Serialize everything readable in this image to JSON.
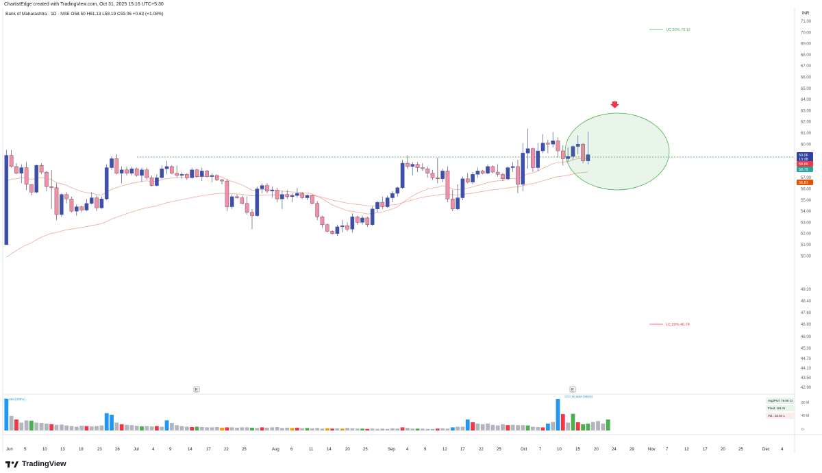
{
  "header": {
    "created": "ChartistEdge created with TradingView.com, Oct 31, 2025 15:16 UTC+5:30"
  },
  "symbol": {
    "name": "Bank of Maharashtra · 1D · NSE",
    "ohlc": "O58.50 H61.13 L58.19 C59.06 +0.63 (+1.08%)"
  },
  "footer": {
    "brand": "TradingView"
  },
  "colors": {
    "up": "#3f4fa8",
    "down": "#ef8faa",
    "ema": "#f2a59a",
    "circle": "#4caf50",
    "arrow": "#f23645",
    "dotted": "#4caf50",
    "vol_blue": "#2196f3",
    "vol_red": "#f23645",
    "vol_green": "#4caf50",
    "vol_gray": "#b2b5be",
    "vol_orange": "#ff9800"
  },
  "chart_data": {
    "type": "candlestick",
    "currency": "INR",
    "y_ticks": [
      "71.00",
      "70.00",
      "69.00",
      "68.00",
      "67.00",
      "66.00",
      "65.00",
      "64.00",
      "63.00",
      "62.00",
      "61.00",
      "60.00",
      "59.00",
      "58.00",
      "57.00",
      "56.00",
      "55.00",
      "54.00",
      "53.00",
      "52.00",
      "51.00",
      "50.00",
      "49.20",
      "48.40",
      "47.60",
      "46.80",
      "46.00",
      "45.30",
      "44.70",
      "44.10",
      "43.50",
      "42.90"
    ],
    "ylim": [
      42.9,
      71.0
    ],
    "price_tags": [
      {
        "label": "59.06",
        "sub": "13:38",
        "value": 59.06,
        "color": "#2e3fa0"
      },
      {
        "label": "58.89",
        "value": 58.89,
        "color": "#f23645"
      },
      {
        "label": "58.78",
        "value": 58.78,
        "color": "#26a69a"
      },
      {
        "label": "56.81",
        "value": 56.81,
        "color": "#e65100"
      }
    ],
    "upper_circuit": {
      "label": "UC  20%  70.12",
      "value": 70.12
    },
    "lower_circuit": {
      "label": "LC  20%  46.74",
      "value": 46.74
    },
    "resistance_level": 58.85,
    "x_labels": [
      "Jun",
      "5",
      "10",
      "13",
      "18",
      "23",
      "26",
      "Jul",
      "4",
      "9",
      "14",
      "17",
      "22",
      "25",
      "Aug",
      "6",
      "11",
      "14",
      "20",
      "25",
      "Sep",
      "4",
      "9",
      "12",
      "17",
      "22",
      "25",
      "Oct",
      "7",
      "10",
      "15",
      "20",
      "24",
      "29",
      "Nov",
      "7",
      "12",
      "17",
      "20",
      "25",
      "Dec",
      "4"
    ],
    "events": [
      {
        "label": "E",
        "index": 14
      },
      {
        "label": "E",
        "index": 101
      }
    ],
    "volume_labels": {
      "left": "95.43M (485%)",
      "spike": "VOY 95.66M (488%)",
      "right": [
        "Avg/Prvl: 76.66 Cr",
        "Float: 161 M",
        "Vol.: 32.64 L"
      ],
      "ticks": [
        "80 M",
        "40 M",
        "0"
      ]
    },
    "candles": [
      [
        51.0,
        59.5,
        51.0,
        59.0
      ],
      [
        59.0,
        59.5,
        57.9,
        58.0
      ],
      [
        58.0,
        58.3,
        57.3,
        57.4
      ],
      [
        57.4,
        58.2,
        56.5,
        57.9
      ],
      [
        57.9,
        58.4,
        55.9,
        56.4
      ],
      [
        56.4,
        56.4,
        55.4,
        55.7
      ],
      [
        55.7,
        58.2,
        55.6,
        58.1
      ],
      [
        58.1,
        58.3,
        57.3,
        57.5
      ],
      [
        57.5,
        57.6,
        55.8,
        56.2
      ],
      [
        56.2,
        57.7,
        54.2,
        56.1
      ],
      [
        56.1,
        56.5,
        53.2,
        53.7
      ],
      [
        53.7,
        55.6,
        53.5,
        55.5
      ],
      [
        55.5,
        55.7,
        54.7,
        55.1
      ],
      [
        55.1,
        55.3,
        53.9,
        54.0
      ],
      [
        54.0,
        54.6,
        53.6,
        54.4
      ],
      [
        54.4,
        54.5,
        53.9,
        54.1
      ],
      [
        54.1,
        55.1,
        54.0,
        54.7
      ],
      [
        54.7,
        55.7,
        54.6,
        55.2
      ],
      [
        55.2,
        55.4,
        54.0,
        54.3
      ],
      [
        54.3,
        55.3,
        54.2,
        55.1
      ],
      [
        55.1,
        58.2,
        55.0,
        57.9
      ],
      [
        57.9,
        58.9,
        57.7,
        58.7
      ],
      [
        58.7,
        59.1,
        57.3,
        57.4
      ],
      [
        57.4,
        58.0,
        56.5,
        57.7
      ],
      [
        57.7,
        58.0,
        57.2,
        57.4
      ],
      [
        57.4,
        58.0,
        57.2,
        57.8
      ],
      [
        57.8,
        57.9,
        57.1,
        57.2
      ],
      [
        57.2,
        57.9,
        56.6,
        57.7
      ],
      [
        57.7,
        57.9,
        56.8,
        57.0
      ],
      [
        57.0,
        57.2,
        56.2,
        56.3
      ],
      [
        56.3,
        57.3,
        56.2,
        57.0
      ],
      [
        57.0,
        58.1,
        56.9,
        57.8
      ],
      [
        57.8,
        58.5,
        57.3,
        58.0
      ],
      [
        58.0,
        58.1,
        57.3,
        57.4
      ],
      [
        57.4,
        58.1,
        57.0,
        57.2
      ],
      [
        57.2,
        57.5,
        56.9,
        57.3
      ],
      [
        57.3,
        57.4,
        56.8,
        57.0
      ],
      [
        57.0,
        57.9,
        56.9,
        57.7
      ],
      [
        57.7,
        57.8,
        57.0,
        57.1
      ],
      [
        57.1,
        57.9,
        56.7,
        57.6
      ],
      [
        57.6,
        57.7,
        57.0,
        57.1
      ],
      [
        57.1,
        57.4,
        56.6,
        57.2
      ],
      [
        57.2,
        57.3,
        56.7,
        56.8
      ],
      [
        56.8,
        56.9,
        56.4,
        56.7
      ],
      [
        56.7,
        56.9,
        54.0,
        54.4
      ],
      [
        54.4,
        55.5,
        54.2,
        55.3
      ],
      [
        55.3,
        55.5,
        55.1,
        55.2
      ],
      [
        55.2,
        55.4,
        54.6,
        54.7
      ],
      [
        54.7,
        55.3,
        53.7,
        53.9
      ],
      [
        53.9,
        54.2,
        52.4,
        53.6
      ],
      [
        53.6,
        56.2,
        53.5,
        56.0
      ],
      [
        56.0,
        56.5,
        55.6,
        56.3
      ],
      [
        56.3,
        56.5,
        55.6,
        55.8
      ],
      [
        55.8,
        56.2,
        55.2,
        55.9
      ],
      [
        55.9,
        56.1,
        54.8,
        55.1
      ],
      [
        55.1,
        55.8,
        54.2,
        55.5
      ],
      [
        55.5,
        55.9,
        55.1,
        55.3
      ],
      [
        55.3,
        55.6,
        54.8,
        55.4
      ],
      [
        55.4,
        56.1,
        55.2,
        55.6
      ],
      [
        55.6,
        55.7,
        55.1,
        55.2
      ],
      [
        55.2,
        55.5,
        55.0,
        55.4
      ],
      [
        55.4,
        55.5,
        54.6,
        54.7
      ],
      [
        54.7,
        54.9,
        53.2,
        53.5
      ],
      [
        53.5,
        53.6,
        52.5,
        52.8
      ],
      [
        52.8,
        52.9,
        52.1,
        52.2
      ],
      [
        52.2,
        52.3,
        51.9,
        52.0
      ],
      [
        52.0,
        52.8,
        51.8,
        52.6
      ],
      [
        52.6,
        53.2,
        52.1,
        52.7
      ],
      [
        52.7,
        53.0,
        52.2,
        52.4
      ],
      [
        52.4,
        53.8,
        52.1,
        53.5
      ],
      [
        53.5,
        53.6,
        52.8,
        53.0
      ],
      [
        53.0,
        53.6,
        52.8,
        53.4
      ],
      [
        53.4,
        53.5,
        52.6,
        52.8
      ],
      [
        52.8,
        54.4,
        52.7,
        54.2
      ],
      [
        54.2,
        54.9,
        53.9,
        54.8
      ],
      [
        54.8,
        55.3,
        54.2,
        54.4
      ],
      [
        54.4,
        55.4,
        54.3,
        55.2
      ],
      [
        55.2,
        55.8,
        54.8,
        55.6
      ],
      [
        55.6,
        56.2,
        55.3,
        56.1
      ],
      [
        56.1,
        58.6,
        56.0,
        58.3
      ],
      [
        58.3,
        59.0,
        57.8,
        58.0
      ],
      [
        58.0,
        58.4,
        57.2,
        58.2
      ],
      [
        58.2,
        58.4,
        57.5,
        57.9
      ],
      [
        57.9,
        58.3,
        57.6,
        57.8
      ],
      [
        57.8,
        58.0,
        57.0,
        57.4
      ],
      [
        57.4,
        57.7,
        56.8,
        57.0
      ],
      [
        57.0,
        58.8,
        56.5,
        56.9
      ],
      [
        56.9,
        57.8,
        56.6,
        57.6
      ],
      [
        57.6,
        58.0,
        54.8,
        55.1
      ],
      [
        55.1,
        55.9,
        54.0,
        54.2
      ],
      [
        54.2,
        56.4,
        54.1,
        55.2
      ],
      [
        55.2,
        57.1,
        55.0,
        56.9
      ],
      [
        56.9,
        57.4,
        56.5,
        56.6
      ],
      [
        56.6,
        57.5,
        56.4,
        57.3
      ],
      [
        57.3,
        57.9,
        57.0,
        57.6
      ],
      [
        57.6,
        57.7,
        57.3,
        57.4
      ],
      [
        57.4,
        58.2,
        57.3,
        58.0
      ],
      [
        58.0,
        58.1,
        57.4,
        57.5
      ],
      [
        57.5,
        58.2,
        57.1,
        57.3
      ],
      [
        57.3,
        57.4,
        56.7,
        56.9
      ],
      [
        56.9,
        58.0,
        56.8,
        57.9
      ],
      [
        57.9,
        58.4,
        57.5,
        58.0
      ],
      [
        58.0,
        58.6,
        55.6,
        56.4
      ],
      [
        56.4,
        60.1,
        55.8,
        59.2
      ],
      [
        59.2,
        61.4,
        57.8,
        59.6
      ],
      [
        59.6,
        59.7,
        57.5,
        57.9
      ],
      [
        57.9,
        60.1,
        57.6,
        59.4
      ],
      [
        59.4,
        60.9,
        59.2,
        60.1
      ],
      [
        60.1,
        60.4,
        59.2,
        60.0
      ],
      [
        60.0,
        61.1,
        59.7,
        60.3
      ],
      [
        60.3,
        60.6,
        58.8,
        59.4
      ],
      [
        59.4,
        59.9,
        58.1,
        58.7
      ],
      [
        58.7,
        59.7,
        58.4,
        58.9
      ],
      [
        58.9,
        59.9,
        58.6,
        59.8
      ],
      [
        59.8,
        60.8,
        59.1,
        60.0
      ],
      [
        60.0,
        60.1,
        58.3,
        58.5
      ],
      [
        58.5,
        61.13,
        58.19,
        59.06
      ]
    ],
    "volume_ratio": [
      1.0,
      0.46,
      0.35,
      0.25,
      0.32,
      0.31,
      0.25,
      0.24,
      0.22,
      0.2,
      0.18,
      0.19,
      0.16,
      0.14,
      0.12,
      0.15,
      0.14,
      0.13,
      0.14,
      0.16,
      0.55,
      0.5,
      0.25,
      0.2,
      0.18,
      0.17,
      0.15,
      0.13,
      0.14,
      0.13,
      0.14,
      0.12,
      0.32,
      0.24,
      0.17,
      0.14,
      0.12,
      0.11,
      0.12,
      0.11,
      0.1,
      0.1,
      0.11,
      0.09,
      0.1,
      0.1,
      0.09,
      0.1,
      0.1,
      0.09,
      0.08,
      0.1,
      0.09,
      0.1,
      0.11,
      0.08,
      0.09,
      0.08,
      0.09,
      0.07,
      0.08,
      0.07,
      0.08,
      0.06,
      0.07,
      0.06,
      0.07,
      0.06,
      0.08,
      0.07,
      0.06,
      0.06,
      0.05,
      0.06,
      0.05,
      0.06,
      0.05,
      0.07,
      0.06,
      0.1,
      0.08,
      0.06,
      0.06,
      0.06,
      0.05,
      0.05,
      0.06,
      0.07,
      0.06,
      0.1,
      0.12,
      0.12,
      0.35,
      0.26,
      0.22,
      0.2,
      0.22,
      0.18,
      0.16,
      0.2,
      0.17,
      0.18,
      0.17,
      0.17,
      0.16,
      0.12,
      0.11,
      0.1,
      0.22,
      0.27,
      1.0,
      0.52,
      0.25,
      0.53,
      0.26,
      0.2,
      0.22,
      0.27,
      0.3,
      0.22,
      0.35
    ]
  }
}
